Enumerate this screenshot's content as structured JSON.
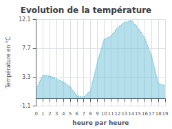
{
  "chart_data": {
    "type": "area",
    "title": "Evolution de la température",
    "xlabel": "heure par heure",
    "ylabel": "Température en °C",
    "x": [
      0,
      1,
      2,
      3,
      4,
      5,
      6,
      7,
      8,
      9,
      10,
      11,
      12,
      13,
      14,
      15,
      16,
      17,
      18,
      19
    ],
    "values": [
      1.5,
      3.6,
      3.4,
      3.0,
      2.5,
      1.8,
      0.4,
      0.2,
      1.2,
      5.5,
      9.0,
      9.5,
      10.8,
      11.6,
      11.9,
      10.8,
      9.2,
      6.5,
      2.3,
      2.0
    ],
    "xlim": [
      0,
      19
    ],
    "xticks": [
      0,
      1,
      2,
      3,
      4,
      5,
      6,
      7,
      8,
      9,
      10,
      11,
      12,
      13,
      14,
      15,
      16,
      17,
      18,
      19
    ],
    "ylim": [
      -1.1,
      12.1
    ],
    "yticks": [
      -1.1,
      3.3,
      7.7,
      12.1
    ],
    "color": "#6bbfd8",
    "line_style": "dotted",
    "grid": true
  }
}
